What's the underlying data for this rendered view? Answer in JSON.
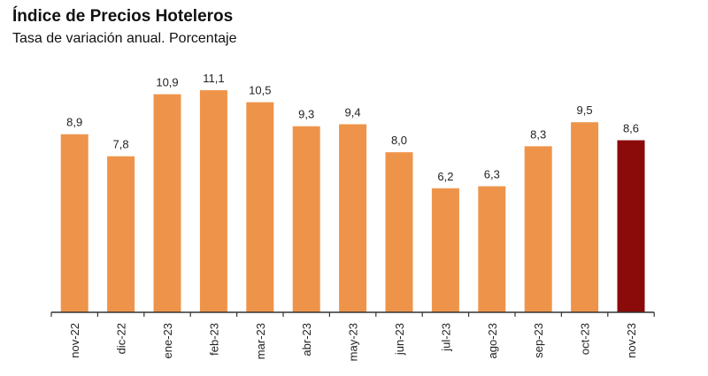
{
  "chart_data": {
    "type": "bar",
    "title": "Índice de Precios Hoteleros",
    "subtitle": "Tasa de variación anual. Porcentaje",
    "categories": [
      "nov-22",
      "dic-22",
      "ene-23",
      "feb-23",
      "mar-23",
      "abr-23",
      "may-23",
      "jun-23",
      "jul-23",
      "ago-23",
      "sep-23",
      "oct-23",
      "nov-23"
    ],
    "values": [
      8.9,
      7.8,
      10.9,
      11.1,
      10.5,
      9.3,
      9.4,
      8.0,
      6.2,
      6.3,
      8.3,
      9.5,
      8.6
    ],
    "data_labels": [
      "8,9",
      "7,8",
      "10,9",
      "11,1",
      "10,5",
      "9,3",
      "9,4",
      "8,0",
      "6,2",
      "6,3",
      "8,3",
      "9,5",
      "8,6"
    ],
    "ylim": [
      0,
      11.1
    ],
    "grid": false,
    "colors": {
      "bar": "#EE944A",
      "highlight": "#8B0A0A",
      "highlight_index": 12
    }
  }
}
